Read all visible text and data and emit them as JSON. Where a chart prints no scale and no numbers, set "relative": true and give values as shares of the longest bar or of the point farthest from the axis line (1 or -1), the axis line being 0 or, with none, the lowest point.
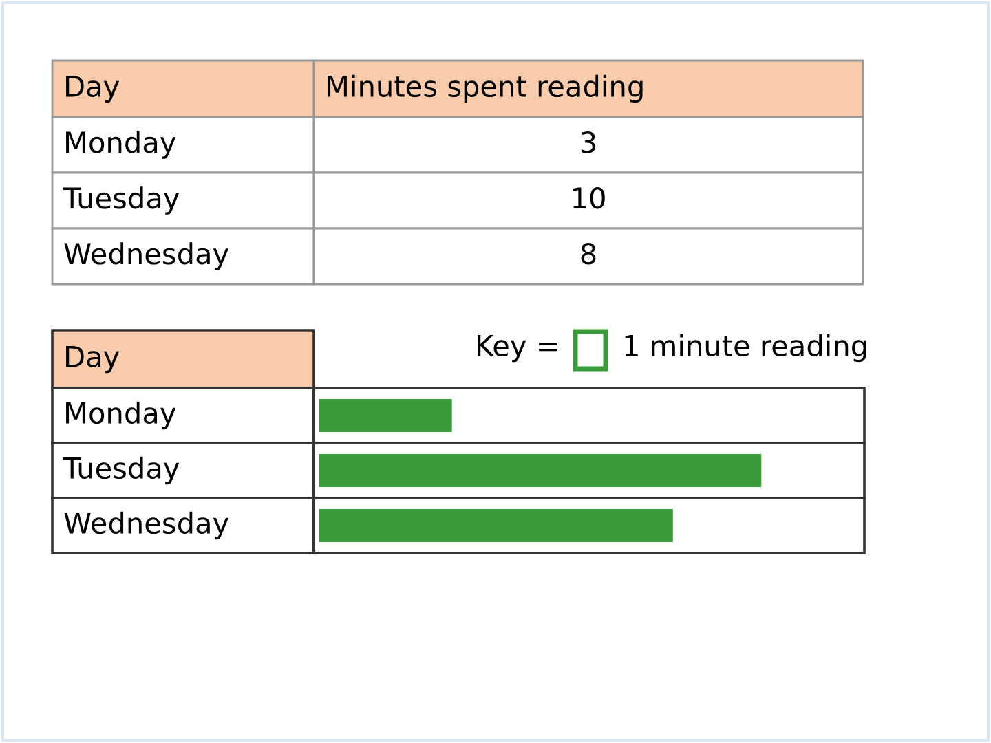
{
  "chart_data": [
    {
      "type": "other",
      "annotations": [
        "Day",
        "Minutes spent reading",
        "Monday",
        "3",
        "Tuesday",
        "10",
        "Wednesday",
        "8"
      ]
    },
    {
      "type": "bar",
      "orientation": "horizontal",
      "relative": true,
      "ylabel": "Day",
      "categories": [
        "Monday",
        "Tuesday",
        "Wednesday"
      ],
      "values": [
        0.3,
        1,
        0.8
      ],
      "color": "#3a9a3a",
      "annotations": [
        "Key =",
        "1 minute reading"
      ]
    }
  ]
}
